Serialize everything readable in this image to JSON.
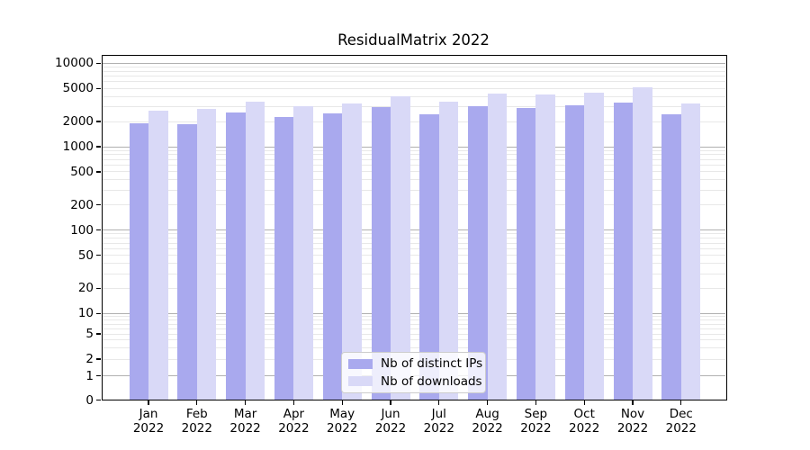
{
  "chart_data": {
    "type": "bar",
    "title": "ResidualMatrix 2022",
    "categories": [
      "Jan 2022",
      "Feb 2022",
      "Mar 2022",
      "Apr 2022",
      "May 2022",
      "Jun 2022",
      "Jul 2022",
      "Aug 2022",
      "Sep 2022",
      "Oct 2022",
      "Nov 2022",
      "Dec 2022"
    ],
    "series": [
      {
        "name": "Nb of distinct IPs",
        "color": "#a9a9ee",
        "values": [
          1900,
          1860,
          2550,
          2280,
          2520,
          2990,
          2430,
          3060,
          2940,
          3140,
          3360,
          2420
        ]
      },
      {
        "name": "Nb of downloads",
        "color": "#d9d9f7",
        "values": [
          2670,
          2840,
          3470,
          3030,
          3310,
          3970,
          3500,
          4310,
          4200,
          4450,
          5180,
          3310
        ]
      }
    ],
    "xlabel": "",
    "ylabel": "",
    "yscale": "symlog",
    "yticks": [
      0,
      1,
      2,
      5,
      10,
      20,
      50,
      100,
      200,
      500,
      1000,
      2000,
      5000,
      10000
    ],
    "ylim": [
      0,
      13000
    ],
    "grid": "on",
    "legend_position": "lower center"
  },
  "colors": {
    "major_grid": "#b0b0b0",
    "minor_grid": "#e8e8e8",
    "axis": "#000000",
    "legend_border": "#cccccc",
    "background": "#ffffff"
  }
}
